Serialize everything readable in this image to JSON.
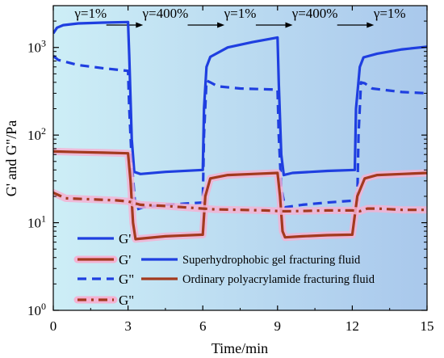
{
  "chart_data": {
    "type": "line",
    "xlabel": "Time/min",
    "ylabel": "G' and G\"/Pa",
    "xlim": [
      0,
      15
    ],
    "ylim": [
      1,
      3000
    ],
    "yscale": "log",
    "x_ticks": [
      0,
      3,
      6,
      9,
      12,
      15
    ],
    "x_tick_labels": [
      "0",
      "3",
      "6",
      "9",
      "12",
      "15"
    ],
    "y_ticks": [
      1,
      10,
      100,
      1000
    ],
    "y_tick_labels": [
      {
        "base": "10",
        "exp": "0"
      },
      {
        "base": "10",
        "exp": "1"
      },
      {
        "base": "10",
        "exp": "2"
      },
      {
        "base": "10",
        "exp": "3"
      }
    ],
    "background_gradient": [
      "#cdeef6",
      "#a9c8ec"
    ],
    "phases": [
      {
        "label": "γ=1%",
        "x_start": 0,
        "x_end": 3
      },
      {
        "label": "γ=400%",
        "x_start": 3,
        "x_end": 6
      },
      {
        "label": "γ=1%",
        "x_start": 6,
        "x_end": 9
      },
      {
        "label": "γ=400%",
        "x_start": 9,
        "x_end": 12
      },
      {
        "label": "γ=1%",
        "x_start": 12,
        "x_end": 15
      }
    ],
    "legend": {
      "placement": "bottom-left",
      "entries": [
        {
          "symbol": "G'",
          "series": 0
        },
        {
          "symbol": "G'",
          "series": 2
        },
        {
          "symbol": "G\"",
          "series": 1
        },
        {
          "symbol": "G\"",
          "series": 3
        }
      ],
      "fluid_labels": [
        {
          "text": "Superhydrophobic gel fracturing fluid",
          "color": "#1f3fe0"
        },
        {
          "text": "Ordinary polyacrylamide fracturing fluid",
          "color": "#a33a1e"
        }
      ]
    },
    "series": [
      {
        "color": "#1f3fe0",
        "dash": "solid",
        "glow": false,
        "points": [
          [
            0,
            1450
          ],
          [
            0.15,
            1680
          ],
          [
            0.4,
            1800
          ],
          [
            1,
            1880
          ],
          [
            2,
            1920
          ],
          [
            3,
            1950
          ],
          [
            3.05,
            800
          ],
          [
            3.15,
            90
          ],
          [
            3.25,
            38
          ],
          [
            3.5,
            36
          ],
          [
            4.5,
            38
          ],
          [
            6,
            40
          ],
          [
            6.05,
            200
          ],
          [
            6.15,
            600
          ],
          [
            6.3,
            780
          ],
          [
            7,
            1000
          ],
          [
            8,
            1150
          ],
          [
            9,
            1300
          ],
          [
            9.05,
            400
          ],
          [
            9.15,
            60
          ],
          [
            9.25,
            35
          ],
          [
            9.6,
            37
          ],
          [
            11,
            39
          ],
          [
            12.1,
            40
          ],
          [
            12.15,
            200
          ],
          [
            12.3,
            600
          ],
          [
            12.45,
            770
          ],
          [
            13,
            850
          ],
          [
            14,
            950
          ],
          [
            15,
            1020
          ]
        ]
      },
      {
        "color": "#1f3fe0",
        "dash": "dashed",
        "glow": false,
        "points": [
          [
            0,
            800
          ],
          [
            0.2,
            720
          ],
          [
            1,
            630
          ],
          [
            2,
            580
          ],
          [
            3,
            540
          ],
          [
            3.05,
            200
          ],
          [
            3.15,
            50
          ],
          [
            3.3,
            14
          ],
          [
            3.6,
            15
          ],
          [
            4.5,
            16
          ],
          [
            6,
            17
          ],
          [
            6.05,
            100
          ],
          [
            6.15,
            420
          ],
          [
            6.3,
            400
          ],
          [
            6.6,
            360
          ],
          [
            7.5,
            340
          ],
          [
            9,
            330
          ],
          [
            9.05,
            100
          ],
          [
            9.15,
            25
          ],
          [
            9.3,
            15
          ],
          [
            10,
            16
          ],
          [
            11,
            17
          ],
          [
            12.2,
            18
          ],
          [
            12.25,
            100
          ],
          [
            12.35,
            400
          ],
          [
            12.5,
            390
          ],
          [
            12.8,
            340
          ],
          [
            14,
            310
          ],
          [
            15,
            300
          ]
        ]
      },
      {
        "color": "#a33a1e",
        "dash": "solid",
        "glow": true,
        "points": [
          [
            0,
            65
          ],
          [
            1,
            64
          ],
          [
            2,
            63
          ],
          [
            3,
            62
          ],
          [
            3.1,
            30
          ],
          [
            3.2,
            10
          ],
          [
            3.3,
            6.5
          ],
          [
            4.5,
            7
          ],
          [
            5,
            7.1
          ],
          [
            6,
            7.3
          ],
          [
            6.1,
            20
          ],
          [
            6.3,
            32
          ],
          [
            7,
            35
          ],
          [
            8,
            36
          ],
          [
            9,
            37
          ],
          [
            9.1,
            20
          ],
          [
            9.2,
            8
          ],
          [
            9.3,
            6.8
          ],
          [
            10,
            7
          ],
          [
            11,
            7.2
          ],
          [
            12,
            7.3
          ],
          [
            12.2,
            20
          ],
          [
            12.5,
            32
          ],
          [
            13,
            35
          ],
          [
            14,
            36
          ],
          [
            15,
            37
          ]
        ]
      },
      {
        "color": "#a33a1e",
        "dash": "dashdot",
        "glow": true,
        "points": [
          [
            0,
            22
          ],
          [
            0.5,
            19
          ],
          [
            1.5,
            18.5
          ],
          [
            2.5,
            18
          ],
          [
            3,
            17.5
          ],
          [
            3.5,
            16
          ],
          [
            4.5,
            15.5
          ],
          [
            6,
            14.5
          ],
          [
            6.5,
            14.2
          ],
          [
            7.5,
            14
          ],
          [
            8.5,
            13.8
          ],
          [
            9,
            13.6
          ],
          [
            9.3,
            13.5
          ],
          [
            10,
            13.6
          ],
          [
            11,
            13.8
          ],
          [
            12,
            13.8
          ],
          [
            12.3,
            13.5
          ],
          [
            12.6,
            14.5
          ],
          [
            13,
            14.5
          ],
          [
            14,
            14
          ],
          [
            15,
            14
          ]
        ]
      }
    ]
  }
}
